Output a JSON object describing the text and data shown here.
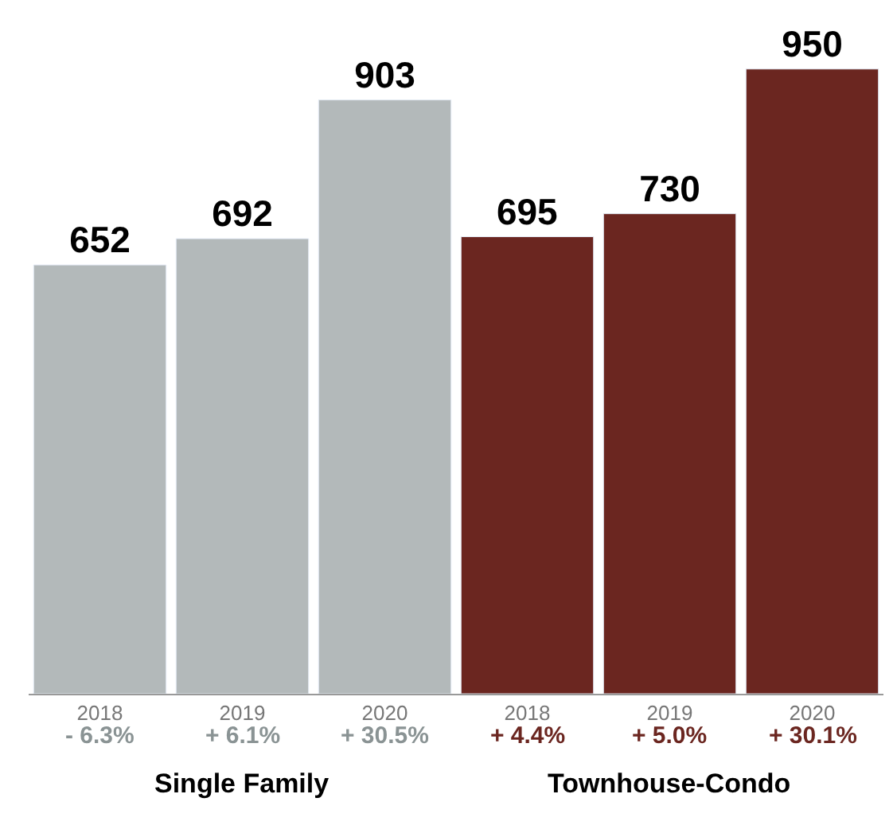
{
  "chart_data": {
    "type": "bar",
    "categories": [
      "2018",
      "2019",
      "2020",
      "2018",
      "2019",
      "2020"
    ],
    "series": [
      {
        "name": "Single Family",
        "color": "#b3b9ba",
        "values": [
          652,
          692,
          903,
          null,
          null,
          null
        ]
      },
      {
        "name": "Townhouse-Condo",
        "color": "#6b2620",
        "values": [
          null,
          null,
          null,
          695,
          730,
          950
        ]
      }
    ],
    "annotations": [
      "- 6.3%",
      "+ 6.1%",
      "+ 30.5%",
      "+ 4.4%",
      "+ 5.0%",
      "+ 30.1%"
    ],
    "data_labels": true,
    "legend": false
  }
}
